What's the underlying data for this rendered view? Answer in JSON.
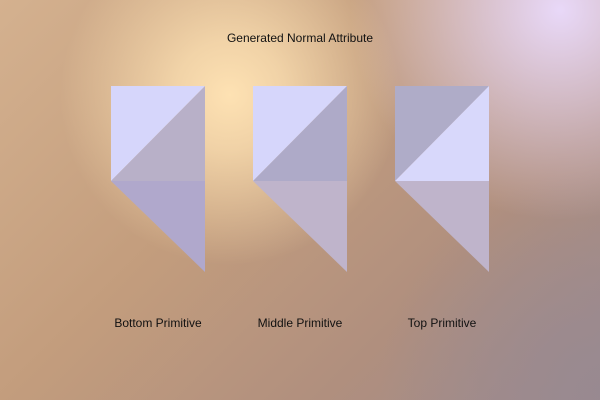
{
  "page": {
    "title": "Generated Normal Attribute"
  },
  "primitives": [
    {
      "label": "Bottom Primitive",
      "colors": {
        "upper_left": "#d6d6fb",
        "upper_right": "#b8b0c8",
        "lower": "#b0a8cc"
      }
    },
    {
      "label": "Middle Primitive",
      "colors": {
        "upper_left": "#d6d6fb",
        "upper_right": "#aeaac8",
        "lower": "#bfb4cb"
      }
    },
    {
      "label": "Top Primitive",
      "colors": {
        "upper_left": "#afacc8",
        "upper_right": "#d8d8fb",
        "lower": "#bfb4cb"
      }
    }
  ]
}
